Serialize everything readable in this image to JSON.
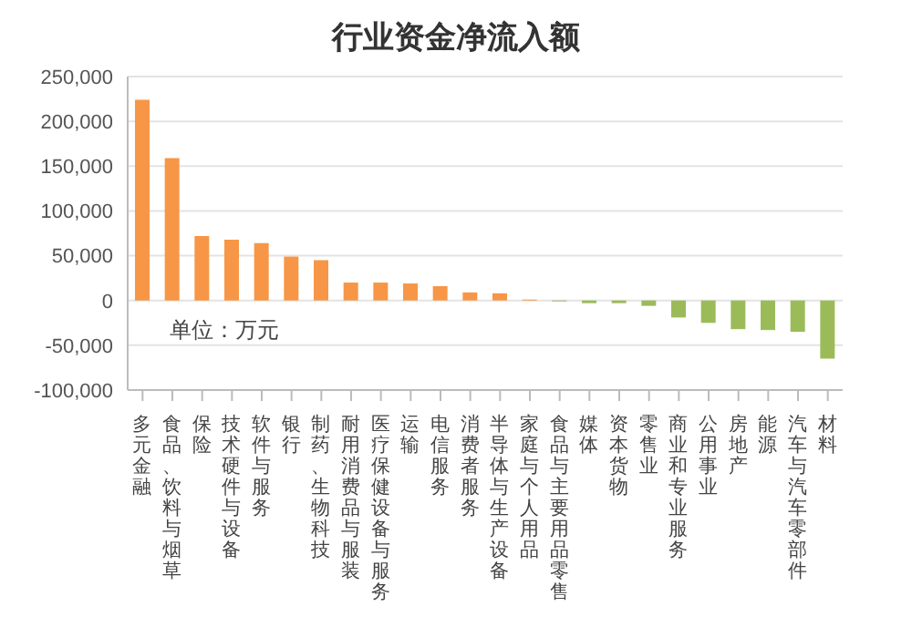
{
  "chart_data": {
    "type": "bar",
    "title": "行业资金净流入额",
    "categories": [
      "多元金融",
      "食品、饮料与烟草",
      "保险",
      "技术硬件与设备",
      "软件与服务",
      "银行",
      "制药、生物科技",
      "耐用消费品与服装",
      "医疗保健设备与服务",
      "运输",
      "电信服务",
      "消费者服务",
      "半导体与生产设备",
      "家庭与个人用品",
      "食品与主要用品零售",
      "媒体",
      "资本货物",
      "零售业",
      "商业和专业服务",
      "公用事业",
      "房地产",
      "能源",
      "汽车与汽车零部件",
      "材料"
    ],
    "values": [
      224000,
      159000,
      72000,
      68000,
      64000,
      49000,
      45000,
      20000,
      20000,
      19000,
      16000,
      9000,
      8000,
      1000,
      -1000,
      -3000,
      -3000,
      -6000,
      -19000,
      -25000,
      -32000,
      -33000,
      -35000,
      -65000
    ],
    "colors": [
      "#f79646",
      "#f79646",
      "#f79646",
      "#f79646",
      "#f79646",
      "#f79646",
      "#f79646",
      "#f79646",
      "#f79646",
      "#f79646",
      "#f79646",
      "#f79646",
      "#f79646",
      "#f79646",
      "#9bbb59",
      "#9bbb59",
      "#9bbb59",
      "#9bbb59",
      "#9bbb59",
      "#9bbb59",
      "#9bbb59",
      "#9bbb59",
      "#9bbb59",
      "#9bbb59"
    ],
    "ylim": [
      -100000,
      250000
    ],
    "yticks": [
      {
        "value": -100000,
        "label": "-100,000"
      },
      {
        "value": -50000,
        "label": "-50,000"
      },
      {
        "value": 0,
        "label": "0"
      },
      {
        "value": 50000,
        "label": "50,000"
      },
      {
        "value": 100000,
        "label": "100,000"
      },
      {
        "value": 150000,
        "label": "150,000"
      },
      {
        "value": 200000,
        "label": "200,000"
      },
      {
        "value": 250000,
        "label": "250,000"
      }
    ],
    "grid": "y",
    "annotations": [
      "单位：万元"
    ]
  }
}
